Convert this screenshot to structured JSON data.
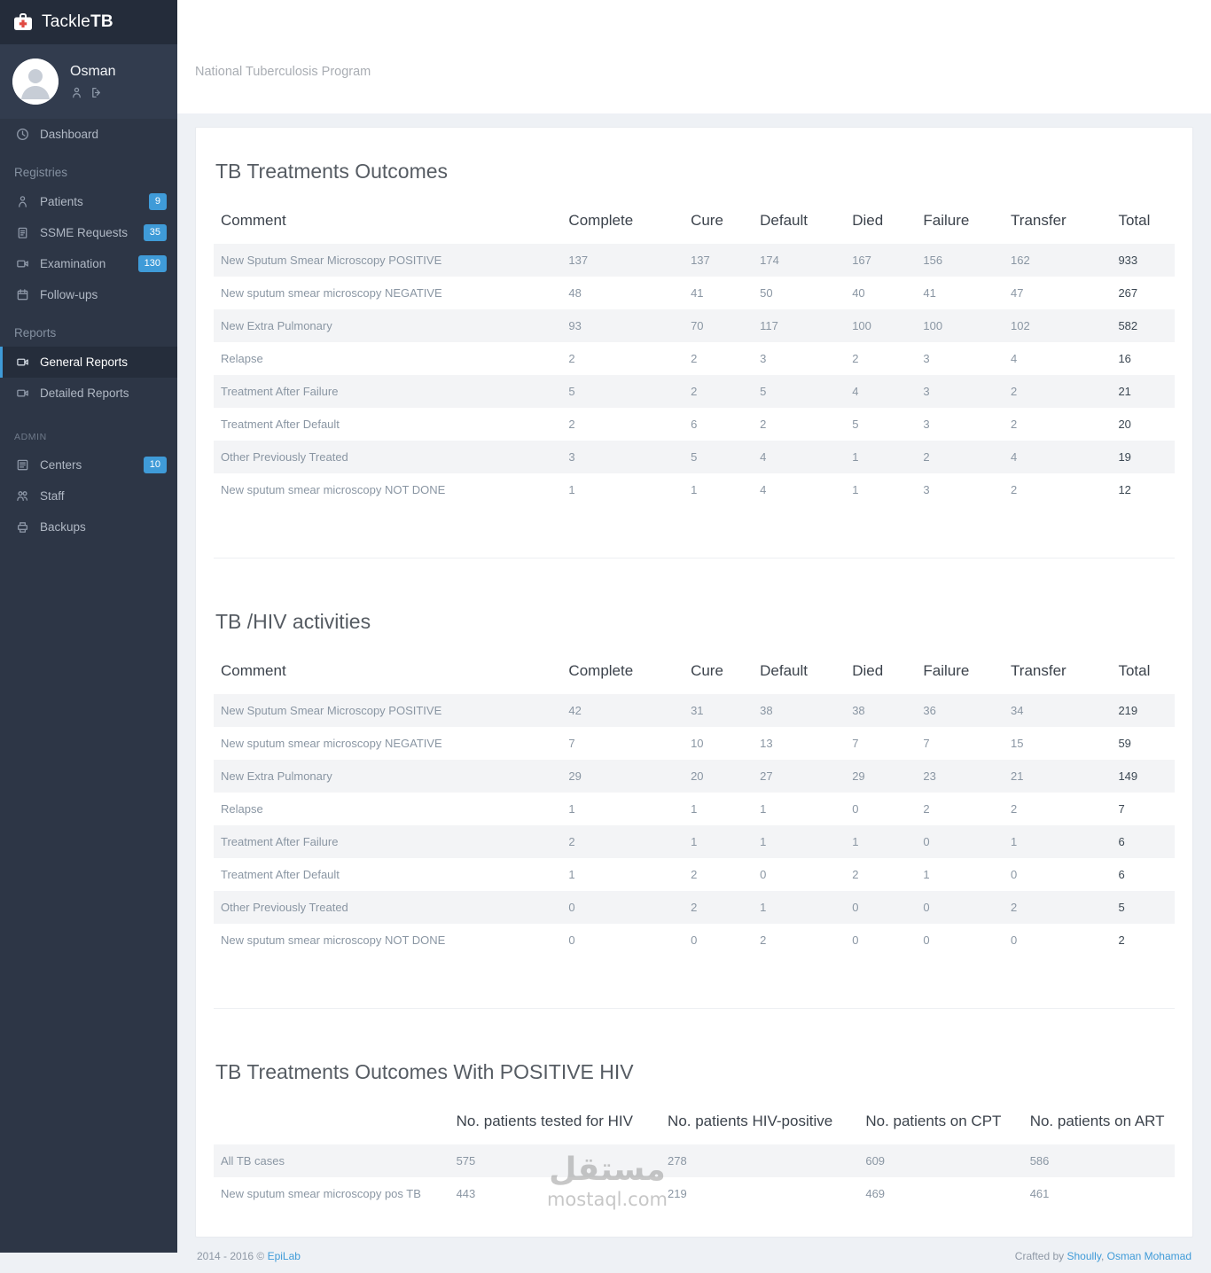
{
  "app": {
    "brand_prefix": "Tackle",
    "brand_suffix": "TB"
  },
  "user": {
    "name": "Osman"
  },
  "header": {
    "title": "National Tuberculosis Program"
  },
  "colors": {
    "accent_blue": "#3f9bd8",
    "sidebar_bg": "#2d3646",
    "sidebar_logo_bg": "#242c3a",
    "sidebar_user_bg": "#323c4e",
    "content_bg": "#eef1f5",
    "logo_cross_red": "#e04a42"
  },
  "sidebar": {
    "groups": [
      {
        "heading": null,
        "items": [
          {
            "label": "Dashboard",
            "icon": "dashboard-icon",
            "badge": null,
            "active": false
          }
        ]
      },
      {
        "heading": "Registries",
        "items": [
          {
            "label": "Patients",
            "icon": "patient-icon",
            "badge": "9",
            "active": false
          },
          {
            "label": "SSME Requests",
            "icon": "clipboard-icon",
            "badge": "35",
            "active": false
          },
          {
            "label": "Examination",
            "icon": "camera-icon",
            "badge": "130",
            "active": false
          },
          {
            "label": "Follow-ups",
            "icon": "calendar-icon",
            "badge": null,
            "active": false
          }
        ]
      },
      {
        "heading": "Reports",
        "items": [
          {
            "label": "General Reports",
            "icon": "camera-icon",
            "badge": null,
            "active": true
          },
          {
            "label": "Detailed Reports",
            "icon": "camera-icon",
            "badge": null,
            "active": false
          }
        ]
      },
      {
        "heading": "ADMIN",
        "items": [
          {
            "label": "Centers",
            "icon": "list-icon",
            "badge": "10",
            "active": false
          },
          {
            "label": "Staff",
            "icon": "users-icon",
            "badge": null,
            "active": false
          },
          {
            "label": "Backups",
            "icon": "backup-icon",
            "badge": null,
            "active": false
          }
        ]
      }
    ]
  },
  "tables": [
    {
      "title": "TB Treatments Outcomes",
      "columns": [
        "Comment",
        "Complete",
        "Cure",
        "Default",
        "Died",
        "Failure",
        "Transfer",
        "Total"
      ],
      "rows": [
        {
          "comment": "New Sputum Smear Microscopy POSITIVE",
          "values": [
            137,
            137,
            174,
            167,
            156,
            162,
            933
          ]
        },
        {
          "comment": "New sputum smear microscopy NEGATIVE",
          "values": [
            48,
            41,
            50,
            40,
            41,
            47,
            267
          ]
        },
        {
          "comment": "New Extra Pulmonary",
          "values": [
            93,
            70,
            117,
            100,
            100,
            102,
            582
          ]
        },
        {
          "comment": "Relapse",
          "values": [
            2,
            2,
            3,
            2,
            3,
            4,
            16
          ]
        },
        {
          "comment": "Treatment After Failure",
          "values": [
            5,
            2,
            5,
            4,
            3,
            2,
            21
          ]
        },
        {
          "comment": "Treatment After Default",
          "values": [
            2,
            6,
            2,
            5,
            3,
            2,
            20
          ]
        },
        {
          "comment": "Other Previously Treated",
          "values": [
            3,
            5,
            4,
            1,
            2,
            4,
            19
          ]
        },
        {
          "comment": "New sputum smear microscopy NOT DONE",
          "values": [
            1,
            1,
            4,
            1,
            3,
            2,
            12
          ]
        }
      ]
    },
    {
      "title": "TB /HIV activities",
      "columns": [
        "Comment",
        "Complete",
        "Cure",
        "Default",
        "Died",
        "Failure",
        "Transfer",
        "Total"
      ],
      "rows": [
        {
          "comment": "New Sputum Smear Microscopy POSITIVE",
          "values": [
            42,
            31,
            38,
            38,
            36,
            34,
            219
          ]
        },
        {
          "comment": "New sputum smear microscopy NEGATIVE",
          "values": [
            7,
            10,
            13,
            7,
            7,
            15,
            59
          ]
        },
        {
          "comment": "New Extra Pulmonary",
          "values": [
            29,
            20,
            27,
            29,
            23,
            21,
            149
          ]
        },
        {
          "comment": "Relapse",
          "values": [
            1,
            1,
            1,
            0,
            2,
            2,
            7
          ]
        },
        {
          "comment": "Treatment After Failure",
          "values": [
            2,
            1,
            1,
            1,
            0,
            1,
            6
          ]
        },
        {
          "comment": "Treatment After Default",
          "values": [
            1,
            2,
            0,
            2,
            1,
            0,
            6
          ]
        },
        {
          "comment": "Other Previously Treated",
          "values": [
            0,
            2,
            1,
            0,
            0,
            2,
            5
          ]
        },
        {
          "comment": "New sputum smear microscopy NOT DONE",
          "values": [
            0,
            0,
            2,
            0,
            0,
            0,
            2
          ]
        }
      ]
    },
    {
      "title": "TB Treatments Outcomes With POSITIVE HIV",
      "columns": [
        "",
        "No. patients tested for HIV",
        "No. patients HIV-positive",
        "No. patients on CPT",
        "No. patients on ART"
      ],
      "rows": [
        {
          "comment": "All TB cases",
          "values": [
            575,
            278,
            609,
            586
          ]
        },
        {
          "comment": "New sputum smear microscopy pos TB",
          "values": [
            443,
            219,
            469,
            461
          ]
        }
      ]
    }
  ],
  "footer": {
    "left_prefix": "2014 - 2016 © ",
    "left_link": "EpiLab",
    "right_prefix": "Crafted by ",
    "right_link1": "Shoully",
    "right_separator": ", ",
    "right_link2": "Osman Mohamad"
  },
  "watermark": {
    "line1": "مستقل",
    "line2": "mostaql.com"
  }
}
